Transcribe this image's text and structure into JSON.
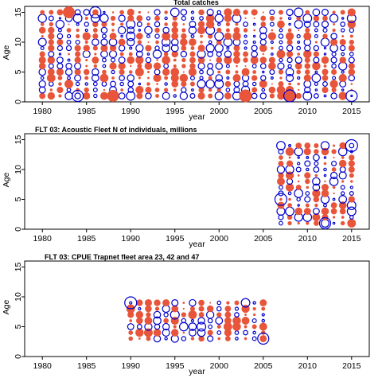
{
  "figure": {
    "background": "#ffffff"
  },
  "colors": {
    "positive": "#e8553a",
    "negative": "#0000cc"
  },
  "chart_data": [
    {
      "type": "scatter",
      "title": "Total catches",
      "xlabel": "year",
      "ylabel": "Age",
      "xlim": [
        1978,
        2017
      ],
      "ylim": [
        0,
        16
      ],
      "xticks": [
        1980,
        1985,
        1990,
        1995,
        2000,
        2005,
        2010,
        2015
      ],
      "yticks": [
        0,
        5,
        10,
        15
      ],
      "bubbles": {
        "years": [
          1980,
          2015
        ],
        "ages": [
          1,
          15
        ],
        "pattern": "full-grid"
      },
      "highlights": [
        {
          "year": 1983,
          "age": 15,
          "sign": "positive",
          "size": 0.9
        },
        {
          "year": 1986,
          "age": 15,
          "sign": "negative",
          "size": 0.8
        },
        {
          "year": 1988,
          "age": 1,
          "sign": "positive",
          "size": 0.9
        },
        {
          "year": 2003,
          "age": 1,
          "sign": "positive",
          "size": 1.0
        },
        {
          "year": 2008,
          "age": 1,
          "sign": "positive",
          "size": 1.0
        },
        {
          "year": 2008,
          "age": 1,
          "sign": "negative",
          "size": 0.9
        },
        {
          "year": 2015,
          "age": 1,
          "sign": "negative",
          "size": 0.8
        },
        {
          "year": 1984,
          "age": 1,
          "sign": "negative",
          "size": 0.8
        }
      ]
    },
    {
      "type": "scatter",
      "title": "FLT 03: Acoustic Fleet   N of individuals, millions",
      "xlabel": "year",
      "ylabel": "Age",
      "xlim": [
        1978,
        2017
      ],
      "ylim": [
        0,
        16
      ],
      "xticks": [
        1980,
        1985,
        1990,
        1995,
        2000,
        2005,
        2010,
        2015
      ],
      "yticks": [
        0,
        5,
        10,
        15
      ],
      "bubbles": {
        "years": [
          2007,
          2015
        ],
        "ages": [
          1,
          14
        ],
        "pattern": "full-grid"
      },
      "highlights": [
        {
          "year": 2007,
          "age": 5,
          "sign": "negative",
          "size": 0.9
        },
        {
          "year": 2015,
          "age": 14,
          "sign": "negative",
          "size": 0.9
        },
        {
          "year": 2012,
          "age": 1,
          "sign": "negative",
          "size": 0.8
        }
      ]
    },
    {
      "type": "scatter",
      "title": "FLT 03: CPUE Trapnet fleet area 23, 42 and 47",
      "xlabel": "year",
      "ylabel": "Age",
      "xlim": [
        1978,
        2017
      ],
      "ylim": [
        0,
        16
      ],
      "xticks": [
        1980,
        1985,
        1990,
        1995,
        2000,
        2005,
        2010,
        2015
      ],
      "yticks": [
        0,
        5,
        10,
        15
      ],
      "bubbles": {
        "years": [
          1990,
          2005
        ],
        "ages": [
          3,
          9
        ],
        "pattern": "full-grid"
      },
      "highlights": [
        {
          "year": 1990,
          "age": 9,
          "sign": "negative",
          "size": 0.9
        },
        {
          "year": 2005,
          "age": 3,
          "sign": "negative",
          "size": 0.8
        }
      ]
    }
  ]
}
